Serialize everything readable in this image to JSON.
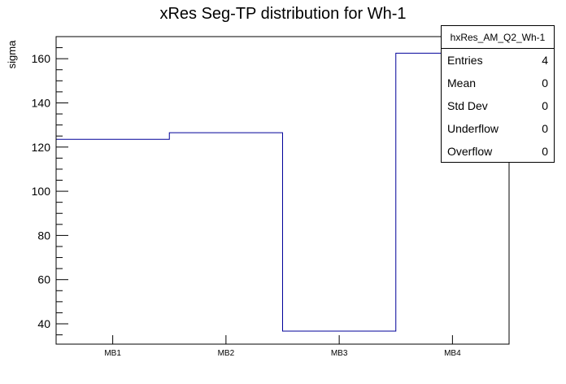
{
  "title": "xRes Seg-TP distribution for Wh-1",
  "axes": {
    "y_label": "sigma"
  },
  "stats_box": {
    "header": "hxRes_AM_Q2_Wh-1",
    "rows": [
      {
        "label": "Entries",
        "value": "4"
      },
      {
        "label": "Mean",
        "value": "0"
      },
      {
        "label": "Std Dev",
        "value": "0"
      },
      {
        "label": "Underflow",
        "value": "0"
      },
      {
        "label": "Overflow",
        "value": "0"
      }
    ]
  },
  "chart_data": {
    "type": "bar",
    "subtype": "step-histogram-outline",
    "title": "xRes Seg-TP distribution for Wh-1",
    "categories": [
      "MB1",
      "MB2",
      "MB3",
      "MB4"
    ],
    "values": [
      123.5,
      126.5,
      36.7,
      162.5
    ],
    "xlabel": "",
    "ylabel": "sigma",
    "ylim": [
      30.8,
      170
    ],
    "y_major_ticks": [
      40,
      60,
      80,
      100,
      120,
      140,
      160
    ],
    "y_minor_tick_step": 5,
    "grid": false,
    "legend": "none",
    "line_color": "#000099",
    "frame_color": "#000000",
    "text_color": "#000000"
  }
}
